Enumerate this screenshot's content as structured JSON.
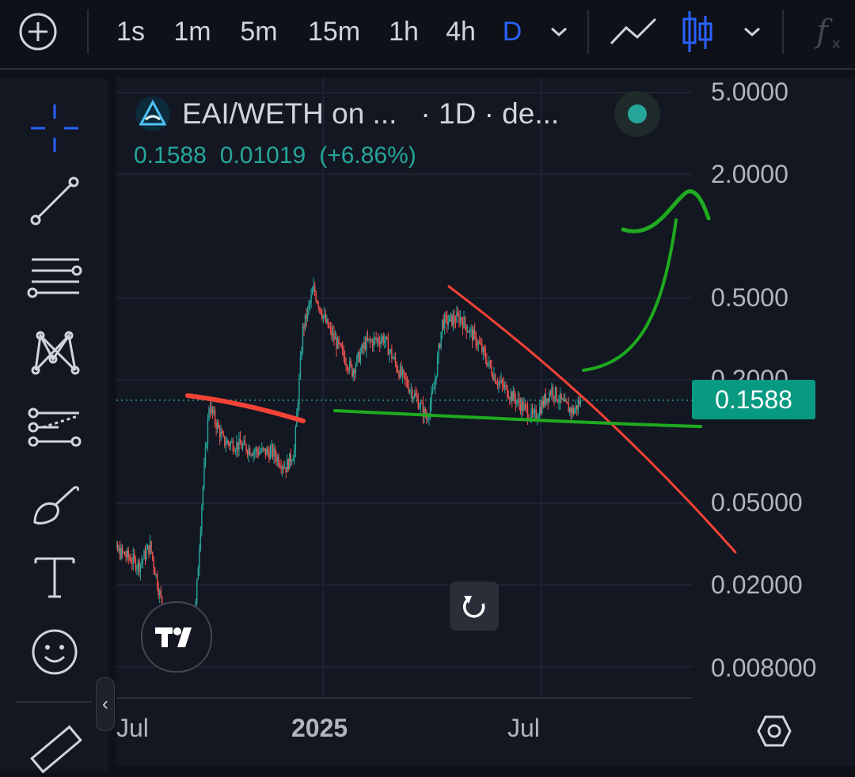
{
  "toolbar": {
    "add_label": "+",
    "timeframes": [
      "1s",
      "1m",
      "5m",
      "15m",
      "1h",
      "4h",
      "D"
    ],
    "active_timeframe": "D",
    "icons": [
      "plus-circle-icon",
      "chevron-down-icon",
      "line-chart-icon",
      "candlestick-icon",
      "chevron-down-icon",
      "function-icon"
    ]
  },
  "leftbar": {
    "tools": [
      "crosshair-icon",
      "trend-line-icon",
      "horizontal-lines-icon",
      "pattern-icon",
      "fib-retracement-icon",
      "brush-icon",
      "text-tool-icon",
      "emoji-icon",
      "ruler-icon"
    ],
    "collapse_label": "‹"
  },
  "legend": {
    "symbol": "EAI/WETH on ...",
    "interval": "· 1D · de...",
    "last": "0.1588",
    "change": "0.01019",
    "change_pct": "(+6.86%)"
  },
  "price_axis": {
    "labels": [
      "5.0000",
      "2.0000",
      "0.5000",
      "0.2000",
      "0.05000",
      "0.02000",
      "0.008000"
    ],
    "current_price": "0.1588"
  },
  "time_axis": {
    "labels": [
      "Jul",
      "2025",
      "Jul"
    ]
  },
  "colors": {
    "up": "#26a69a",
    "down": "#ef5350",
    "price_tag": "#089981",
    "active_accent": "#2962ff",
    "annotation_red": "#f44336",
    "annotation_green": "#1faa1f"
  },
  "chart_data": {
    "type": "candlestick",
    "y_scale": "log",
    "ylim": [
      0.007,
      6.0
    ],
    "y_ticks": [
      5.0,
      2.0,
      0.5,
      0.2,
      0.05,
      0.02,
      0.008
    ],
    "last_price": 0.1588,
    "close_path": [
      {
        "x": "2024-07-02",
        "y": 0.045
      },
      {
        "x": "2024-07-10",
        "y": 0.03
      },
      {
        "x": "2024-07-20",
        "y": 0.028
      },
      {
        "x": "2024-08-01",
        "y": 0.025
      },
      {
        "x": "2024-08-10",
        "y": 0.031
      },
      {
        "x": "2024-08-18",
        "y": 0.018
      },
      {
        "x": "2024-08-25",
        "y": 0.012
      },
      {
        "x": "2024-09-05",
        "y": 0.009
      },
      {
        "x": "2024-09-15",
        "y": 0.01
      },
      {
        "x": "2024-09-22",
        "y": 0.05
      },
      {
        "x": "2024-09-28",
        "y": 0.15
      },
      {
        "x": "2024-10-10",
        "y": 0.1
      },
      {
        "x": "2024-10-25",
        "y": 0.095
      },
      {
        "x": "2024-11-05",
        "y": 0.09
      },
      {
        "x": "2024-11-20",
        "y": 0.088
      },
      {
        "x": "2024-12-01",
        "y": 0.075
      },
      {
        "x": "2024-12-08",
        "y": 0.09
      },
      {
        "x": "2024-12-15",
        "y": 0.35
      },
      {
        "x": "2024-12-24",
        "y": 0.55
      },
      {
        "x": "2025-01-03",
        "y": 0.38
      },
      {
        "x": "2025-01-15",
        "y": 0.28
      },
      {
        "x": "2025-01-25",
        "y": 0.22
      },
      {
        "x": "2025-02-05",
        "y": 0.3
      },
      {
        "x": "2025-02-20",
        "y": 0.32
      },
      {
        "x": "2025-03-05",
        "y": 0.22
      },
      {
        "x": "2025-03-20",
        "y": 0.16
      },
      {
        "x": "2025-03-28",
        "y": 0.13
      },
      {
        "x": "2025-04-03",
        "y": 0.18
      },
      {
        "x": "2025-04-10",
        "y": 0.38
      },
      {
        "x": "2025-04-25",
        "y": 0.4
      },
      {
        "x": "2025-05-10",
        "y": 0.3
      },
      {
        "x": "2025-05-25",
        "y": 0.2
      },
      {
        "x": "2025-06-10",
        "y": 0.16
      },
      {
        "x": "2025-06-25",
        "y": 0.13
      },
      {
        "x": "2025-07-10",
        "y": 0.18
      },
      {
        "x": "2025-07-20",
        "y": 0.15
      },
      {
        "x": "2025-07-28",
        "y": 0.14
      },
      {
        "x": "2025-08-03",
        "y": 0.1588
      }
    ]
  }
}
